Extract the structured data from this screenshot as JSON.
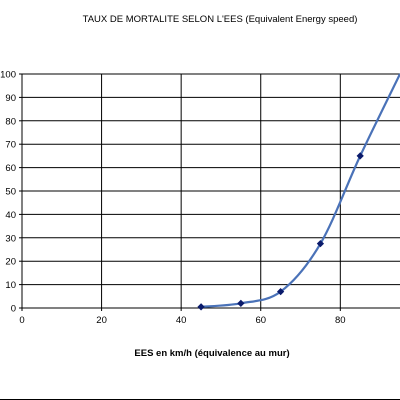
{
  "chart_data": {
    "type": "scatter",
    "title": "TAUX DE MORTALITE SELON L'EES (Equivalent Energy speed)",
    "xlabel": "EES en km/h (équivalence au mur)",
    "ylabel": "",
    "xlim": [
      0,
      95
    ],
    "ylim": [
      0,
      100
    ],
    "x_ticks": [
      0,
      20,
      40,
      60,
      80
    ],
    "y_ticks": [
      0,
      10,
      20,
      30,
      40,
      50,
      60,
      70,
      80,
      90,
      100
    ],
    "grid": true,
    "legend": "none",
    "series": [
      {
        "x": [
          45,
          55,
          65,
          75,
          85
        ],
        "y": [
          0.5,
          2,
          7,
          27.5,
          65
        ],
        "marker": "diamond",
        "marker_color": "#0a1a6b",
        "line_color": "#4a72b8",
        "line": "smooth"
      }
    ]
  }
}
